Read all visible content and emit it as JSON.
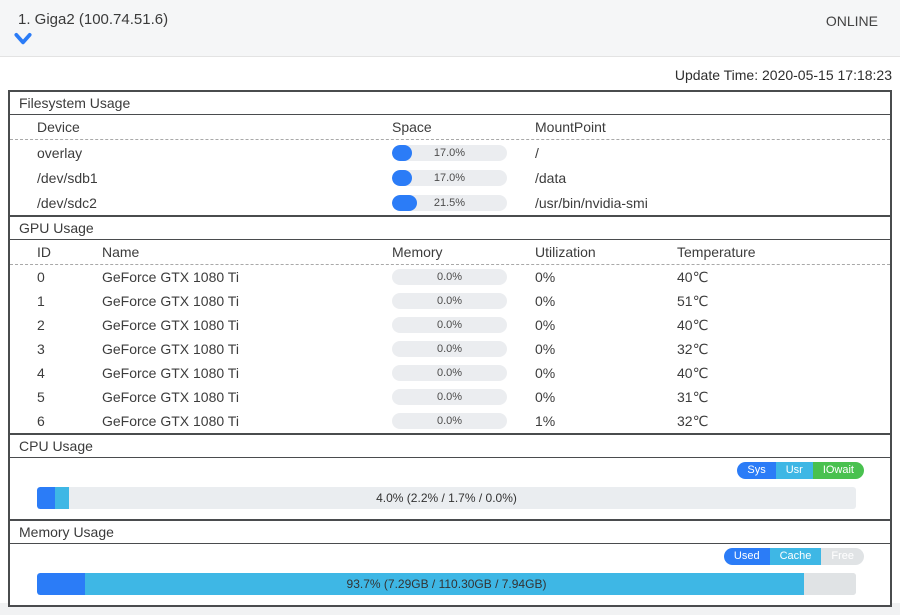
{
  "header": {
    "title": "1. Giga2 (100.74.51.6)",
    "status": "ONLINE"
  },
  "update_time": "Update Time: 2020-05-15 17:18:23",
  "colors": {
    "blue": "#2b7cf7",
    "cyan": "#3eb7e5",
    "green": "#49c14f",
    "free_gray": "#e0e3e5"
  },
  "filesystem": {
    "title": "Filesystem Usage",
    "columns": {
      "device": "Device",
      "space": "Space",
      "mount": "MountPoint"
    },
    "rows": [
      {
        "device": "overlay",
        "space_pct": 17.0,
        "space_label": "17.0%",
        "mount": "/"
      },
      {
        "device": "/dev/sdb1",
        "space_pct": 17.0,
        "space_label": "17.0%",
        "mount": "/data"
      },
      {
        "device": "/dev/sdc2",
        "space_pct": 21.5,
        "space_label": "21.5%",
        "mount": "/usr/bin/nvidia-smi"
      }
    ]
  },
  "gpu": {
    "title": "GPU Usage",
    "columns": {
      "id": "ID",
      "name": "Name",
      "memory": "Memory",
      "utilization": "Utilization",
      "temperature": "Temperature"
    },
    "rows": [
      {
        "id": "0",
        "name": "GeForce GTX 1080 Ti",
        "memory_pct": 0,
        "memory_label": "0.0%",
        "utilization": "0%",
        "temperature": "40℃"
      },
      {
        "id": "1",
        "name": "GeForce GTX 1080 Ti",
        "memory_pct": 0,
        "memory_label": "0.0%",
        "utilization": "0%",
        "temperature": "51℃"
      },
      {
        "id": "2",
        "name": "GeForce GTX 1080 Ti",
        "memory_pct": 0,
        "memory_label": "0.0%",
        "utilization": "0%",
        "temperature": "40℃"
      },
      {
        "id": "3",
        "name": "GeForce GTX 1080 Ti",
        "memory_pct": 0,
        "memory_label": "0.0%",
        "utilization": "0%",
        "temperature": "32℃"
      },
      {
        "id": "4",
        "name": "GeForce GTX 1080 Ti",
        "memory_pct": 0,
        "memory_label": "0.0%",
        "utilization": "0%",
        "temperature": "40℃"
      },
      {
        "id": "5",
        "name": "GeForce GTX 1080 Ti",
        "memory_pct": 0,
        "memory_label": "0.0%",
        "utilization": "0%",
        "temperature": "31℃"
      },
      {
        "id": "6",
        "name": "GeForce GTX 1080 Ti",
        "memory_pct": 0,
        "memory_label": "0.0%",
        "utilization": "1%",
        "temperature": "32℃"
      }
    ]
  },
  "cpu": {
    "title": "CPU Usage",
    "legend": [
      {
        "label": "Sys",
        "color": "#2b7cf7"
      },
      {
        "label": "Usr",
        "color": "#3eb7e5"
      },
      {
        "label": "IOwait",
        "color": "#49c14f"
      }
    ],
    "bar": {
      "label": "4.0% (2.2% / 1.7% / 0.0%)",
      "segments": [
        {
          "name": "sys",
          "pct": 2.2,
          "color": "#2b7cf7"
        },
        {
          "name": "usr",
          "pct": 1.7,
          "color": "#3eb7e5"
        },
        {
          "name": "iowait",
          "pct": 0,
          "color": "#49c14f"
        }
      ]
    }
  },
  "memory": {
    "title": "Memory Usage",
    "legend": [
      {
        "label": "Used",
        "color": "#2b7cf7"
      },
      {
        "label": "Cache",
        "color": "#3eb7e5"
      },
      {
        "label": "Free",
        "color": "#e0e3e5"
      }
    ],
    "bar": {
      "label": "93.7% (7.29GB / 110.30GB / 7.94GB)",
      "segments": [
        {
          "name": "used",
          "pct": 5.8,
          "color": "#2b7cf7"
        },
        {
          "name": "cache",
          "pct": 87.9,
          "color": "#3eb7e5"
        },
        {
          "name": "free",
          "pct": 6.3,
          "color": "#e0e3e5"
        }
      ]
    }
  }
}
